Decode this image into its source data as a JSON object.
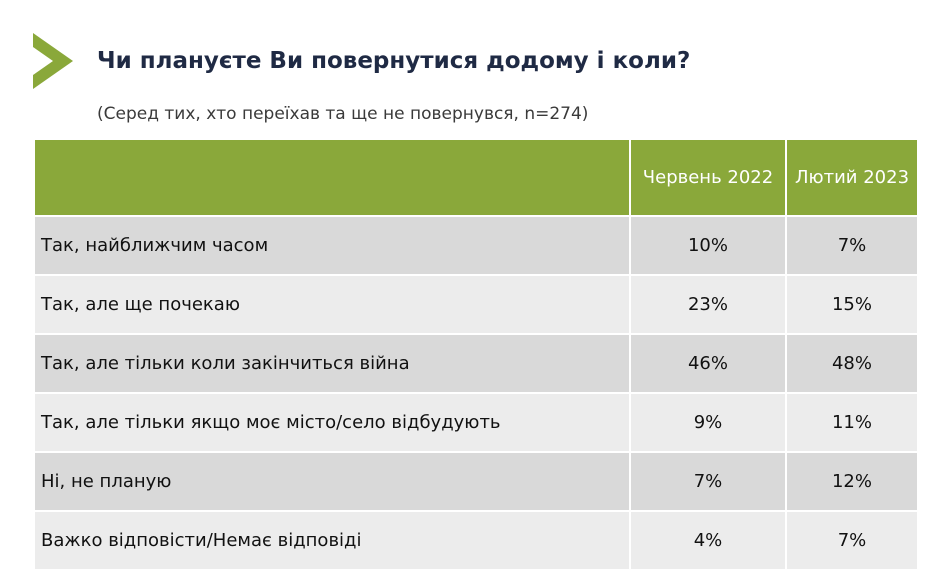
{
  "header": {
    "title": "Чи плануєте Ви повернутися додому і коли?",
    "subtitle": "(Серед тих, хто переїхав та ще не повернувся, n=274)"
  },
  "table": {
    "columns": [
      "Червень 2022",
      "Лютий 2023"
    ],
    "rows": [
      [
        "Так, найближчим часом",
        "10%",
        "7%"
      ],
      [
        "Так, але ще почекаю",
        "23%",
        "15%"
      ],
      [
        "Так, але тільки коли закінчиться війна",
        "46%",
        "48%"
      ],
      [
        "Так, але тільки якщо моє місто/село відбудують",
        "9%",
        "11%"
      ],
      [
        "Ні, не планую",
        "7%",
        "12%"
      ],
      [
        "Важко відповісти/Немає відповіді",
        "4%",
        "7%"
      ]
    ]
  }
}
